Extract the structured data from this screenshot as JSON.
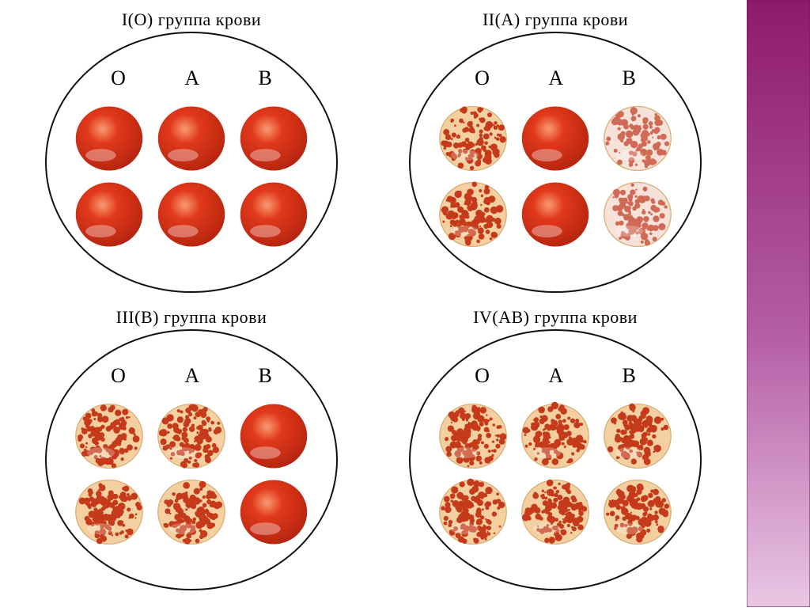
{
  "sidebar": {
    "gradient_top": "#8e1a6b",
    "gradient_mid": "#b45da6",
    "gradient_bottom": "#e9c7e3",
    "border_color": "#7a1560"
  },
  "colors": {
    "solid_red": "#e2391b",
    "solid_red_dark": "#b8260f",
    "solid_highlight": "#f89b72",
    "agg_base": "#f4cfa0",
    "agg_speck": "#c43a1a",
    "agg_border": "#d9b07a",
    "pale_base": "#f6e2d8",
    "pale_speck": "#d06a55",
    "dish_border": "#111111",
    "background": "#ffffff",
    "text": "#000000"
  },
  "serum_labels": [
    "O",
    "A",
    "B"
  ],
  "panels": [
    {
      "title": "I(O) группа крови",
      "drops": [
        {
          "type": "solid"
        },
        {
          "type": "solid"
        },
        {
          "type": "solid"
        },
        {
          "type": "solid"
        },
        {
          "type": "solid"
        },
        {
          "type": "solid"
        }
      ]
    },
    {
      "title": "II(A) группа крови",
      "drops": [
        {
          "type": "agg"
        },
        {
          "type": "solid"
        },
        {
          "type": "pale"
        },
        {
          "type": "agg"
        },
        {
          "type": "solid"
        },
        {
          "type": "pale"
        }
      ]
    },
    {
      "title": "III(B) группа крови",
      "drops": [
        {
          "type": "agg"
        },
        {
          "type": "agg"
        },
        {
          "type": "solid"
        },
        {
          "type": "agg"
        },
        {
          "type": "agg"
        },
        {
          "type": "solid"
        }
      ]
    },
    {
      "title": "IV(AB) группа крови",
      "drops": [
        {
          "type": "agg"
        },
        {
          "type": "agg"
        },
        {
          "type": "agg"
        },
        {
          "type": "agg"
        },
        {
          "type": "agg"
        },
        {
          "type": "agg"
        }
      ]
    }
  ]
}
